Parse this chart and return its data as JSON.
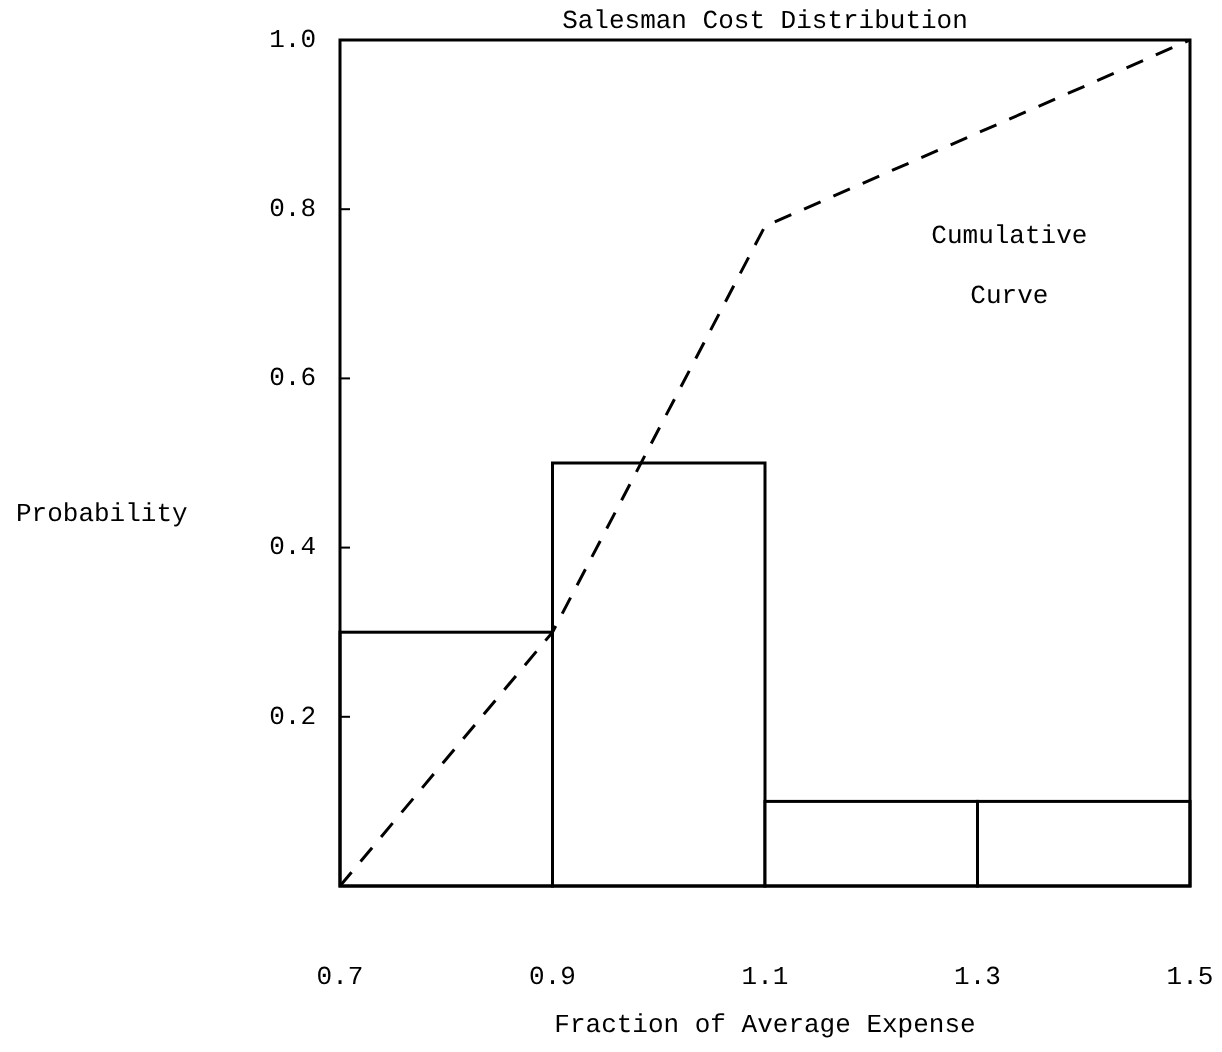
{
  "chart_data": {
    "type": "histogram",
    "title": "Salesman Cost Distribution",
    "xlabel": "Fraction of Average Expense",
    "ylabel": "Probability",
    "bins": [
      0.7,
      0.9,
      1.1,
      1.3,
      1.5
    ],
    "values": [
      0.3,
      0.5,
      0.1,
      0.1
    ],
    "series": [
      {
        "type": "line",
        "x": [
          0.7,
          0.9,
          1.1,
          1.5
        ],
        "values": [
          0,
          0.3,
          0.78,
          1.0
        ],
        "line_style": "dashed",
        "color": "#000000"
      }
    ],
    "annotations": [
      "Cumulative Curve"
    ],
    "xlim": [
      0.7,
      1.5
    ],
    "xticks": [
      0.7,
      0.9,
      1.1,
      1.3,
      1.5
    ],
    "ylim": [
      0,
      1
    ],
    "yticks": [
      0.2,
      0.4,
      0.6,
      0.8,
      {
        "value": 1,
        "label": "1.0"
      }
    ],
    "grid": false
  }
}
